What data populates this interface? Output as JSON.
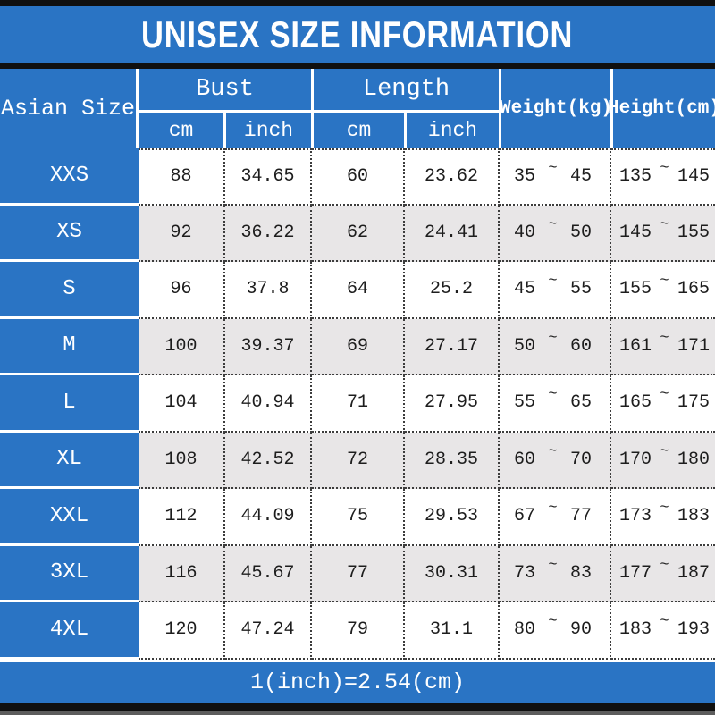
{
  "title": "UNISEX SIZE INFORMATION",
  "table": {
    "headers": {
      "asian_size": "Asian Size",
      "bust": "Bust",
      "length": "Length",
      "weight": "Weight(kg)",
      "height": "Height(cm)",
      "cm": "cm",
      "inch": "inch"
    },
    "range_separator": "~",
    "rows": [
      {
        "size": "XXS",
        "bust_cm": "88",
        "bust_inch": "34.65",
        "length_cm": "60",
        "length_inch": "23.62",
        "weight_min": "35",
        "weight_max": "45",
        "height_min": "135",
        "height_max": "145"
      },
      {
        "size": "XS",
        "bust_cm": "92",
        "bust_inch": "36.22",
        "length_cm": "62",
        "length_inch": "24.41",
        "weight_min": "40",
        "weight_max": "50",
        "height_min": "145",
        "height_max": "155"
      },
      {
        "size": "S",
        "bust_cm": "96",
        "bust_inch": "37.8",
        "length_cm": "64",
        "length_inch": "25.2",
        "weight_min": "45",
        "weight_max": "55",
        "height_min": "155",
        "height_max": "165"
      },
      {
        "size": "M",
        "bust_cm": "100",
        "bust_inch": "39.37",
        "length_cm": "69",
        "length_inch": "27.17",
        "weight_min": "50",
        "weight_max": "60",
        "height_min": "161",
        "height_max": "171"
      },
      {
        "size": "L",
        "bust_cm": "104",
        "bust_inch": "40.94",
        "length_cm": "71",
        "length_inch": "27.95",
        "weight_min": "55",
        "weight_max": "65",
        "height_min": "165",
        "height_max": "175"
      },
      {
        "size": "XL",
        "bust_cm": "108",
        "bust_inch": "42.52",
        "length_cm": "72",
        "length_inch": "28.35",
        "weight_min": "60",
        "weight_max": "70",
        "height_min": "170",
        "height_max": "180"
      },
      {
        "size": "XXL",
        "bust_cm": "112",
        "bust_inch": "44.09",
        "length_cm": "75",
        "length_inch": "29.53",
        "weight_min": "67",
        "weight_max": "77",
        "height_min": "173",
        "height_max": "183"
      },
      {
        "size": "3XL",
        "bust_cm": "116",
        "bust_inch": "45.67",
        "length_cm": "77",
        "length_inch": "30.31",
        "weight_min": "73",
        "weight_max": "83",
        "height_min": "177",
        "height_max": "187"
      },
      {
        "size": "4XL",
        "bust_cm": "120",
        "bust_inch": "47.24",
        "length_cm": "79",
        "length_inch": "31.1",
        "weight_min": "80",
        "weight_max": "90",
        "height_min": "183",
        "height_max": "193"
      }
    ]
  },
  "footer": {
    "note": "1(inch)=2.54(cm)"
  },
  "colors": {
    "accent_blue": "#2a74c4",
    "row_alt_gray": "#e8e6e7",
    "row_white": "#ffffff",
    "frame_black": "#101010",
    "text_black": "#1d1d1d"
  },
  "chart_data": {
    "type": "table",
    "title": "UNISEX SIZE INFORMATION",
    "columns": [
      "Asian Size",
      "Bust cm",
      "Bust inch",
      "Length cm",
      "Length inch",
      "Weight(kg)",
      "Height(cm)"
    ],
    "rows": [
      [
        "XXS",
        88,
        34.65,
        60,
        23.62,
        "35 ~ 45",
        "135 ~ 145"
      ],
      [
        "XS",
        92,
        36.22,
        62,
        24.41,
        "40 ~ 50",
        "145 ~ 155"
      ],
      [
        "S",
        96,
        37.8,
        64,
        25.2,
        "45 ~ 55",
        "155 ~ 165"
      ],
      [
        "M",
        100,
        39.37,
        69,
        27.17,
        "50 ~ 60",
        "161 ~ 171"
      ],
      [
        "L",
        104,
        40.94,
        71,
        27.95,
        "55 ~ 65",
        "165 ~ 175"
      ],
      [
        "XL",
        108,
        42.52,
        72,
        28.35,
        "60 ~ 70",
        "170 ~ 180"
      ],
      [
        "XXL",
        112,
        44.09,
        75,
        29.53,
        "67 ~ 77",
        "173 ~ 183"
      ],
      [
        "3XL",
        116,
        45.67,
        77,
        30.31,
        "73 ~ 83",
        "177 ~ 187"
      ],
      [
        "4XL",
        120,
        47.24,
        79,
        31.1,
        "80 ~ 90",
        "183 ~ 193"
      ]
    ],
    "footnote": "1(inch)=2.54(cm)"
  }
}
